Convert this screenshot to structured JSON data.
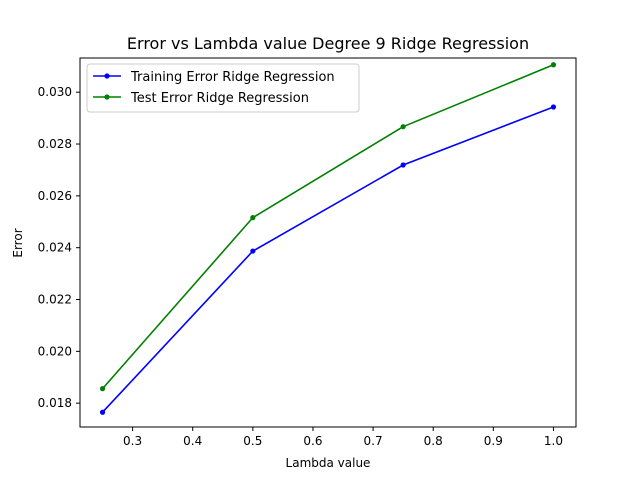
{
  "chart_data": {
    "type": "line",
    "title": "Error vs Lambda value Degree 9 Ridge Regression",
    "xlabel": "Lambda value",
    "ylabel": "Error",
    "x": [
      0.25,
      0.5,
      0.75,
      1.0
    ],
    "xlim": [
      0.2125,
      1.0375
    ],
    "ylim": [
      0.01708,
      0.03132
    ],
    "xticks": [
      "0.3",
      "0.4",
      "0.5",
      "0.6",
      "0.7",
      "0.8",
      "0.9",
      "1.0"
    ],
    "yticks": [
      "0.018",
      "0.020",
      "0.022",
      "0.024",
      "0.026",
      "0.028",
      "0.030"
    ],
    "grid": false,
    "legend_position": "top-left",
    "series": [
      {
        "name": "Training Error Ridge Regression",
        "color": "#0000ff",
        "values": [
          0.01765,
          0.02387,
          0.02719,
          0.02943
        ]
      },
      {
        "name": "Test Error Ridge Regression",
        "color": "#008000",
        "values": [
          0.01856,
          0.02516,
          0.02867,
          0.03106
        ]
      }
    ]
  }
}
